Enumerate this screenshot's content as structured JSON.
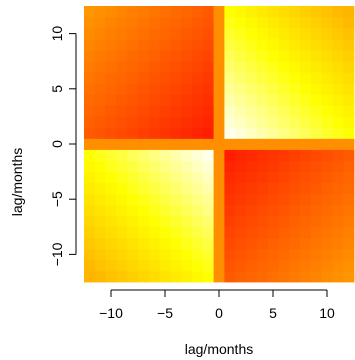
{
  "chart_data": {
    "type": "heatmap",
    "xlabel": "lag/months",
    "ylabel": "lag/months",
    "xlim": [
      -12.5,
      12.5
    ],
    "ylim": [
      -12.5,
      12.5
    ],
    "x_ticks": [
      -10,
      -5,
      0,
      5,
      10
    ],
    "y_ticks": [
      -10,
      -5,
      0,
      5,
      10
    ],
    "x_tick_labels": [
      "−10",
      "−5",
      "0",
      "5",
      "10"
    ],
    "y_tick_labels": [
      "−10",
      "−5",
      "0",
      "5",
      "10"
    ],
    "grid": false,
    "legend": "none",
    "cells": {
      "x_range": [
        -12,
        12
      ],
      "y_range": [
        -12,
        12
      ],
      "step": 1
    },
    "palette": "heat",
    "colors": [
      "#FF0000",
      "#FF8000",
      "#FFFF00",
      "#FFFFFF"
    ],
    "pattern": "lag-product quadrants: bright where x and y share sign, red where signs differ, orange along lag 0"
  }
}
